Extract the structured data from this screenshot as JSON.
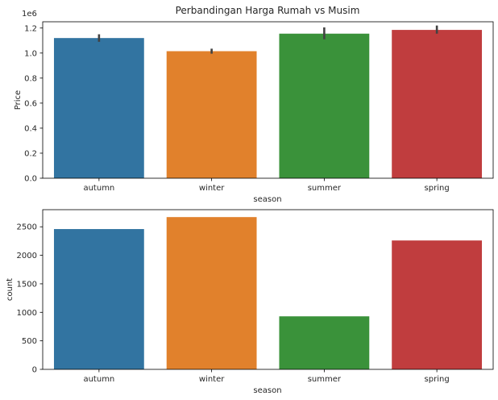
{
  "chart_data": [
    {
      "type": "bar",
      "title": "Perbandingan Harga Rumah vs Musim",
      "xlabel": "season",
      "ylabel": "Price",
      "y_offset_label": "1e6",
      "categories": [
        "autumn",
        "winter",
        "summer",
        "spring"
      ],
      "values": [
        1120000,
        1015000,
        1155000,
        1185000
      ],
      "error_low": [
        1090000,
        995000,
        1110000,
        1155000
      ],
      "error_high": [
        1150000,
        1035000,
        1205000,
        1220000
      ],
      "colors": [
        "#3274a1",
        "#e1812c",
        "#3a923a",
        "#c03d3e"
      ],
      "ylim": [
        0,
        1250000
      ],
      "yticks": [
        0,
        200000,
        400000,
        600000,
        800000,
        1000000,
        1200000
      ],
      "ytick_labels": [
        "0.0",
        "0.2",
        "0.4",
        "0.6",
        "0.8",
        "1.0",
        "1.2"
      ],
      "grid": false,
      "legend": false
    },
    {
      "type": "bar",
      "title": "",
      "xlabel": "season",
      "ylabel": "count",
      "categories": [
        "autumn",
        "winter",
        "summer",
        "spring"
      ],
      "values": [
        2460,
        2670,
        930,
        2260
      ],
      "colors": [
        "#3274a1",
        "#e1812c",
        "#3a923a",
        "#c03d3e"
      ],
      "ylim": [
        0,
        2800
      ],
      "yticks": [
        0,
        500,
        1000,
        1500,
        2000,
        2500
      ],
      "ytick_labels": [
        "0",
        "500",
        "1000",
        "1500",
        "2000",
        "2500"
      ],
      "grid": false,
      "legend": false
    }
  ]
}
